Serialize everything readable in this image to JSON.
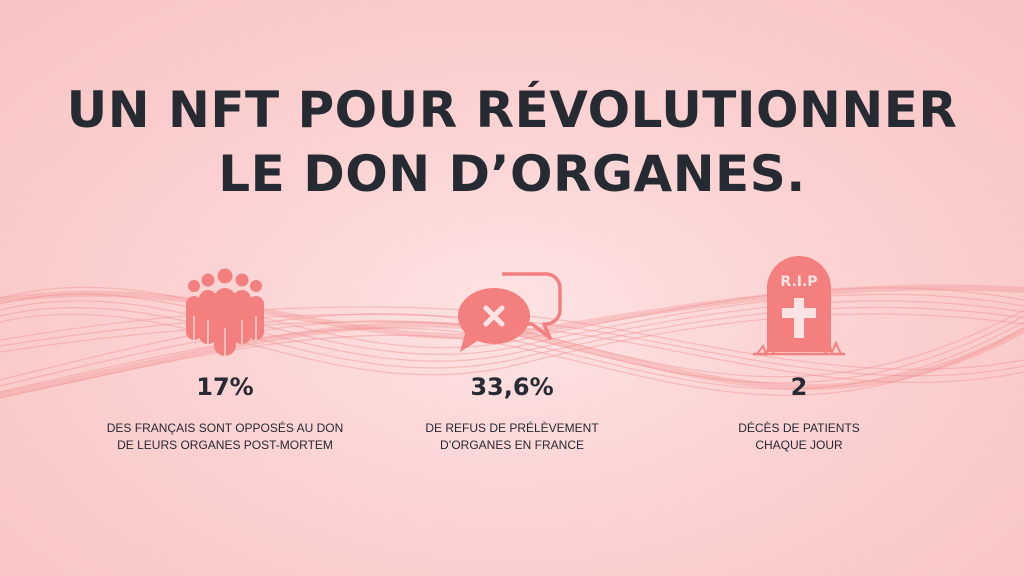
{
  "title": {
    "line1": "UN NFT POUR RÉVOLUTIONNER",
    "line2": "LE DON D’ORGANES."
  },
  "colors": {
    "background": "#fcd2d2",
    "accent": "#f37f7f",
    "text": "#262a33"
  },
  "stats": [
    {
      "icon": "crowd-icon",
      "value": "17%",
      "desc_line1": "DES FRANÇAIS SONT OPPOSÉS AU DON",
      "desc_line2": "DE LEURS ORGANES POST-MORTEM"
    },
    {
      "icon": "speech-bubbles-refusal-icon",
      "value": "33,6%",
      "desc_line1": "DE REFUS DE PRÉLÈVEMENT",
      "desc_line2": "D’ORGANES EN FRANCE"
    },
    {
      "icon": "tombstone-icon",
      "icon_text": "R.I.P",
      "value": "2",
      "desc_line1": "DÉCÈS DE PATIENTS",
      "desc_line2": "CHAQUE JOUR"
    }
  ]
}
